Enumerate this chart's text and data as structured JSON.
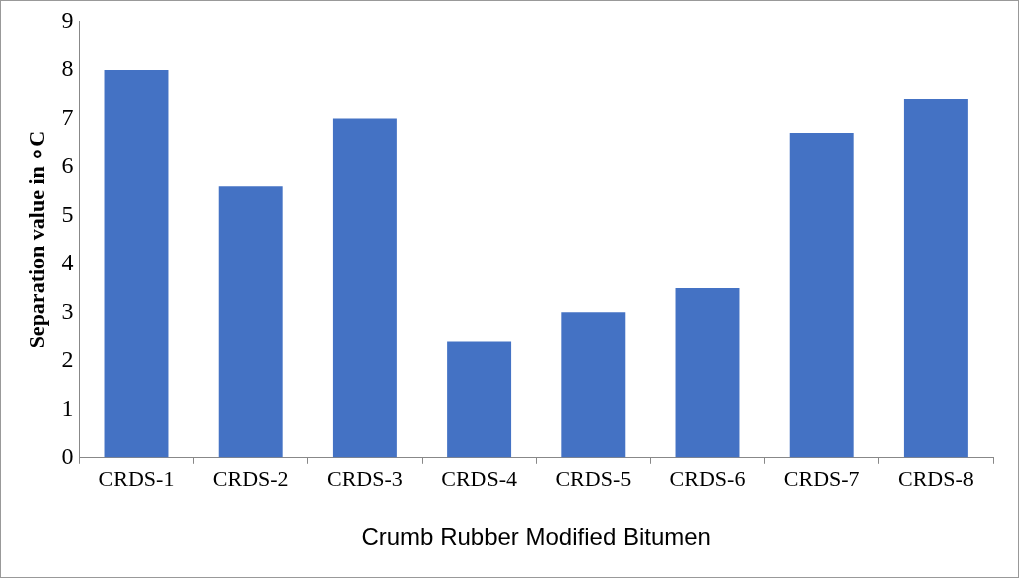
{
  "chart_data": {
    "type": "bar",
    "xlabel": "Crumb Rubber Modified Bitumen",
    "ylabel": "Separation value in ∘C",
    "categories": [
      "CRDS-1",
      "CRDS-2",
      "CRDS-3",
      "CRDS-4",
      "CRDS-5",
      "CRDS-6",
      "CRDS-7",
      "CRDS-8"
    ],
    "values": [
      8,
      5.6,
      7,
      2.4,
      3,
      3.5,
      6.7,
      7.4
    ],
    "color": "#4472c4",
    "ylim": [
      0,
      9
    ],
    "yticks": [
      0,
      1,
      2,
      3,
      4,
      5,
      6,
      7,
      8,
      9
    ],
    "grid": false,
    "legend": false
  }
}
